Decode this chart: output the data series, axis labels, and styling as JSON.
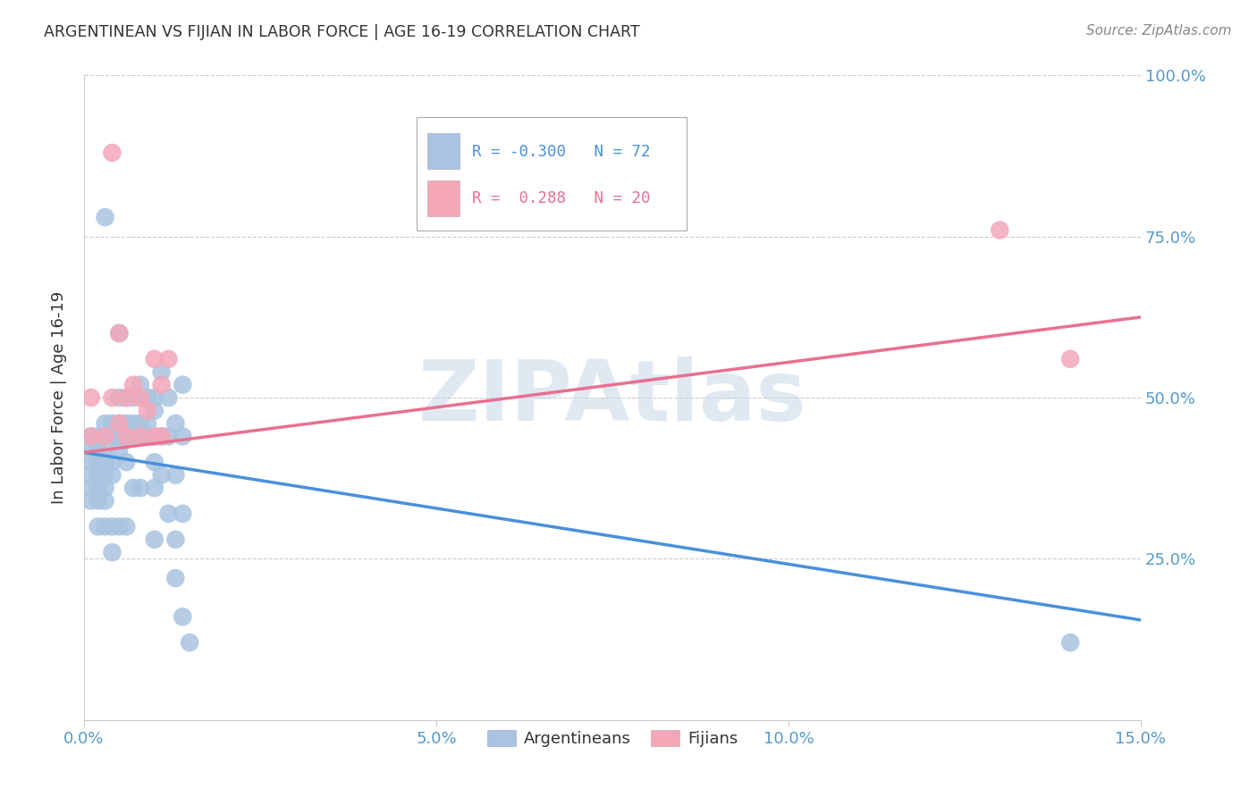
{
  "title": "ARGENTINEAN VS FIJIAN IN LABOR FORCE | AGE 16-19 CORRELATION CHART",
  "source": "Source: ZipAtlas.com",
  "ylabel": "In Labor Force | Age 16-19",
  "xlim": [
    0.0,
    0.15
  ],
  "ylim": [
    0.0,
    1.0
  ],
  "xtick_labels": [
    "0.0%",
    "5.0%",
    "10.0%",
    "15.0%"
  ],
  "xtick_values": [
    0.0,
    0.05,
    0.1,
    0.15
  ],
  "ytick_values": [
    0.25,
    0.5,
    0.75,
    1.0
  ],
  "ytick_labels_right": [
    "25.0%",
    "50.0%",
    "75.0%",
    "100.0%"
  ],
  "blue_color": "#a8c4e0",
  "pink_color": "#f4a7b9",
  "line_blue": "#4a90d9",
  "line_pink": "#e87090",
  "watermark": "ZIPAtlas",
  "watermark_color": "#c8d8e8",
  "blue_r": -0.3,
  "blue_n": 72,
  "pink_r": 0.288,
  "pink_n": 20,
  "blue_line_y0": 0.415,
  "blue_line_y1": 0.155,
  "pink_line_y0": 0.415,
  "pink_line_y1": 0.625,
  "blue_x": [
    0.001,
    0.001,
    0.001,
    0.001,
    0.001,
    0.001,
    0.002,
    0.002,
    0.002,
    0.002,
    0.002,
    0.002,
    0.002,
    0.003,
    0.003,
    0.003,
    0.003,
    0.003,
    0.003,
    0.003,
    0.003,
    0.003,
    0.004,
    0.004,
    0.004,
    0.004,
    0.004,
    0.004,
    0.005,
    0.005,
    0.005,
    0.005,
    0.005,
    0.005,
    0.006,
    0.006,
    0.006,
    0.006,
    0.006,
    0.007,
    0.007,
    0.007,
    0.007,
    0.008,
    0.008,
    0.008,
    0.008,
    0.009,
    0.009,
    0.009,
    0.01,
    0.01,
    0.01,
    0.01,
    0.01,
    0.01,
    0.011,
    0.011,
    0.011,
    0.012,
    0.012,
    0.012,
    0.013,
    0.013,
    0.013,
    0.013,
    0.014,
    0.014,
    0.014,
    0.014,
    0.015,
    0.14
  ],
  "blue_y": [
    0.44,
    0.42,
    0.4,
    0.38,
    0.36,
    0.34,
    0.44,
    0.42,
    0.4,
    0.38,
    0.36,
    0.34,
    0.3,
    0.46,
    0.44,
    0.42,
    0.4,
    0.38,
    0.36,
    0.34,
    0.78,
    0.3,
    0.46,
    0.44,
    0.4,
    0.38,
    0.3,
    0.26,
    0.6,
    0.5,
    0.46,
    0.44,
    0.42,
    0.3,
    0.5,
    0.46,
    0.44,
    0.4,
    0.3,
    0.5,
    0.46,
    0.44,
    0.36,
    0.52,
    0.46,
    0.44,
    0.36,
    0.5,
    0.46,
    0.44,
    0.5,
    0.48,
    0.44,
    0.4,
    0.36,
    0.28,
    0.54,
    0.44,
    0.38,
    0.5,
    0.44,
    0.32,
    0.46,
    0.38,
    0.28,
    0.22,
    0.52,
    0.44,
    0.32,
    0.16,
    0.12,
    0.12
  ],
  "pink_x": [
    0.001,
    0.001,
    0.003,
    0.004,
    0.004,
    0.005,
    0.005,
    0.006,
    0.006,
    0.007,
    0.008,
    0.008,
    0.009,
    0.01,
    0.01,
    0.011,
    0.011,
    0.012,
    0.13,
    0.14
  ],
  "pink_y": [
    0.5,
    0.44,
    0.44,
    0.88,
    0.5,
    0.6,
    0.46,
    0.5,
    0.44,
    0.52,
    0.5,
    0.44,
    0.48,
    0.56,
    0.44,
    0.52,
    0.44,
    0.56,
    0.76,
    0.56
  ]
}
